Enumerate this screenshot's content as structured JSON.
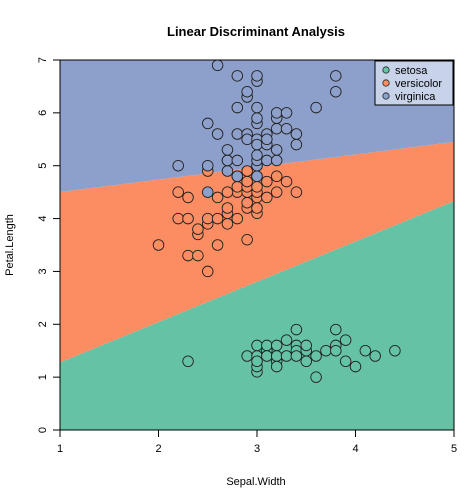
{
  "chart_data": {
    "type": "scatter",
    "title": "Linear Discriminant Analysis",
    "xlabel": "Sepal.Width",
    "ylabel": "Petal.Length",
    "xlim": [
      1,
      5
    ],
    "ylim": [
      0,
      7
    ],
    "xticks": [
      "1",
      "2",
      "3",
      "4",
      "5"
    ],
    "yticks": [
      "0",
      "1",
      "2",
      "3",
      "4",
      "5",
      "6",
      "7"
    ],
    "legend_position": "top-right",
    "regions": [
      {
        "name": "setosa",
        "color": "#66c2a5"
      },
      {
        "name": "versicolor",
        "color": "#fc8d62"
      },
      {
        "name": "virginica",
        "color": "#8da0cb"
      }
    ],
    "boundaries": {
      "setosa_versicolor": {
        "x": [
          1,
          5
        ],
        "y": [
          1.28,
          4.33
        ]
      },
      "versicolor_virginica": {
        "x": [
          1,
          5
        ],
        "y": [
          4.5,
          5.45
        ]
      }
    },
    "series": [
      {
        "name": "setosa",
        "color": "#66c2a5",
        "points": [
          [
            2.3,
            1.3
          ],
          [
            2.9,
            1.4
          ],
          [
            3.0,
            1.4
          ],
          [
            3.0,
            1.1
          ],
          [
            3.0,
            1.2
          ],
          [
            3.0,
            1.6
          ],
          [
            3.0,
            1.3
          ],
          [
            3.1,
            1.5
          ],
          [
            3.1,
            1.6
          ],
          [
            3.1,
            1.4
          ],
          [
            3.2,
            1.3
          ],
          [
            3.2,
            1.2
          ],
          [
            3.2,
            1.6
          ],
          [
            3.2,
            1.4
          ],
          [
            3.3,
            1.4
          ],
          [
            3.3,
            1.7
          ],
          [
            3.4,
            1.6
          ],
          [
            3.4,
            1.5
          ],
          [
            3.4,
            1.9
          ],
          [
            3.4,
            1.4
          ],
          [
            3.5,
            1.3
          ],
          [
            3.5,
            1.5
          ],
          [
            3.5,
            1.6
          ],
          [
            3.6,
            1.4
          ],
          [
            3.6,
            1.0
          ],
          [
            3.7,
            1.5
          ],
          [
            3.8,
            1.6
          ],
          [
            3.8,
            1.9
          ],
          [
            3.8,
            1.5
          ],
          [
            3.9,
            1.3
          ],
          [
            3.9,
            1.7
          ],
          [
            4.0,
            1.2
          ],
          [
            4.1,
            1.5
          ],
          [
            4.2,
            1.4
          ],
          [
            4.4,
            1.5
          ]
        ]
      },
      {
        "name": "versicolor",
        "color": "#fc8d62",
        "points": [
          [
            2.0,
            3.5
          ],
          [
            2.2,
            4.0
          ],
          [
            2.2,
            4.5
          ],
          [
            2.3,
            4.4
          ],
          [
            2.3,
            3.3
          ],
          [
            2.3,
            4.0
          ],
          [
            2.4,
            3.3
          ],
          [
            2.4,
            3.7
          ],
          [
            2.4,
            3.8
          ],
          [
            2.5,
            3.0
          ],
          [
            2.5,
            3.9
          ],
          [
            2.5,
            4.0
          ],
          [
            2.5,
            4.9
          ],
          [
            2.6,
            3.5
          ],
          [
            2.6,
            4.0
          ],
          [
            2.6,
            4.4
          ],
          [
            2.7,
            3.9
          ],
          [
            2.7,
            4.1
          ],
          [
            2.7,
            4.2
          ],
          [
            2.7,
            5.1
          ],
          [
            2.8,
            4.0
          ],
          [
            2.8,
            4.5
          ],
          [
            2.8,
            4.6
          ],
          [
            2.8,
            4.8
          ],
          [
            2.9,
            3.6
          ],
          [
            2.9,
            4.2
          ],
          [
            2.9,
            4.3
          ],
          [
            2.9,
            4.5
          ],
          [
            2.9,
            4.6
          ],
          [
            2.9,
            4.7
          ],
          [
            3.0,
            4.1
          ],
          [
            3.0,
            4.2
          ],
          [
            3.0,
            4.4
          ],
          [
            3.0,
            4.5
          ],
          [
            3.0,
            4.6
          ],
          [
            3.0,
            4.8
          ],
          [
            3.0,
            5.0
          ],
          [
            3.1,
            4.4
          ],
          [
            3.1,
            4.7
          ],
          [
            3.2,
            4.5
          ],
          [
            3.2,
            4.8
          ],
          [
            3.3,
            4.7
          ],
          [
            3.4,
            4.5
          ],
          [
            2.9,
            4.9
          ],
          [
            2.7,
            4.5
          ]
        ]
      },
      {
        "name": "virginica",
        "color": "#8da0cb",
        "points": [
          [
            2.2,
            5.0
          ],
          [
            2.5,
            4.5
          ],
          [
            2.5,
            5.0
          ],
          [
            2.5,
            5.8
          ],
          [
            2.6,
            6.9
          ],
          [
            2.6,
            5.6
          ],
          [
            2.7,
            4.9
          ],
          [
            2.7,
            5.1
          ],
          [
            2.7,
            5.3
          ],
          [
            2.8,
            4.8
          ],
          [
            2.8,
            5.1
          ],
          [
            2.8,
            5.6
          ],
          [
            2.8,
            6.1
          ],
          [
            2.8,
            6.7
          ],
          [
            2.9,
            5.6
          ],
          [
            2.9,
            6.3
          ],
          [
            2.9,
            5.5
          ],
          [
            3.0,
            4.8
          ],
          [
            3.0,
            5.0
          ],
          [
            3.0,
            5.1
          ],
          [
            3.0,
            5.2
          ],
          [
            3.0,
            5.5
          ],
          [
            3.0,
            5.8
          ],
          [
            3.0,
            5.9
          ],
          [
            3.0,
            6.1
          ],
          [
            3.0,
            6.6
          ],
          [
            3.0,
            6.7
          ],
          [
            3.0,
            5.4
          ],
          [
            3.1,
            5.1
          ],
          [
            3.1,
            5.4
          ],
          [
            3.1,
            5.6
          ],
          [
            3.1,
            5.5
          ],
          [
            3.2,
            5.1
          ],
          [
            3.2,
            5.3
          ],
          [
            3.2,
            5.7
          ],
          [
            3.2,
            5.9
          ],
          [
            3.2,
            6.0
          ],
          [
            3.3,
            5.7
          ],
          [
            3.3,
            6.0
          ],
          [
            3.4,
            5.4
          ],
          [
            3.4,
            5.6
          ],
          [
            3.6,
            6.1
          ],
          [
            3.8,
            6.4
          ],
          [
            3.8,
            6.7
          ],
          [
            2.9,
            6.4
          ]
        ]
      }
    ]
  }
}
